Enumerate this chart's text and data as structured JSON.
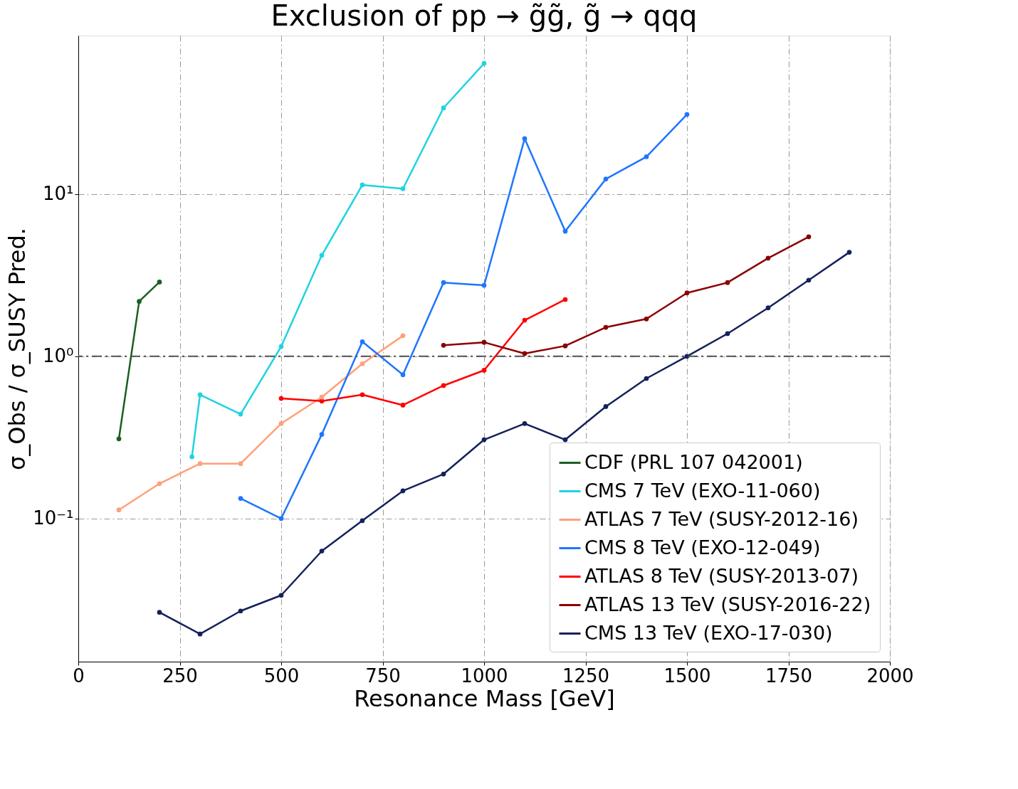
{
  "chart_data": {
    "type": "line",
    "title": "Exclusion of pp → g̃g̃, g̃ → qqq",
    "xlabel": "Resonance Mass [GeV]",
    "ylabel": "σ_Obs / σ_SUSY Pred.",
    "log": "y",
    "grid": true,
    "legend": "bottom right",
    "marker": "circle",
    "xlim": [
      0,
      2000
    ],
    "xticks": [
      0,
      250,
      500,
      750,
      1000,
      1250,
      1500,
      1750,
      2000
    ],
    "ylim": [
      0.0131,
      95
    ],
    "yticks": [
      {
        "value": 0.1,
        "label": "10⁻¹"
      },
      {
        "value": 1,
        "label": "10⁰"
      },
      {
        "value": 10,
        "label": "10¹"
      }
    ],
    "ref_lines": [
      {
        "axis": "y",
        "value": 1,
        "color": "#555555"
      }
    ],
    "series": [
      {
        "name": "CDF (PRL 107 042001)",
        "color": "#1b5e20",
        "x": [
          100,
          150,
          200
        ],
        "values": [
          0.31,
          2.18,
          2.87
        ]
      },
      {
        "name": "CMS 7 TeV (EXO-11-060)",
        "color": "#1fd3e0",
        "x": [
          280,
          300,
          400,
          500,
          600,
          700,
          800,
          900,
          1000
        ],
        "values": [
          0.24,
          0.58,
          0.44,
          1.15,
          4.2,
          11.4,
          10.8,
          34,
          64
        ]
      },
      {
        "name": "ATLAS 7 TeV (SUSY-2012-16)",
        "color": "#ffa07a",
        "x": [
          100,
          200,
          300,
          400,
          500,
          600,
          700,
          800
        ],
        "values": [
          0.113,
          0.164,
          0.218,
          0.218,
          0.385,
          0.56,
          0.9,
          1.34
        ]
      },
      {
        "name": "CMS 8 TeV (EXO-12-049)",
        "color": "#1f75fe",
        "x": [
          400,
          500,
          600,
          700,
          800,
          900,
          1000,
          1100,
          1200,
          1300,
          1400,
          1500
        ],
        "values": [
          0.133,
          0.1,
          0.33,
          1.23,
          0.77,
          2.85,
          2.74,
          22,
          5.9,
          12.4,
          17,
          31
        ]
      },
      {
        "name": "ATLAS 8 TeV (SUSY-2013-07)",
        "color": "#ff0000",
        "x": [
          500,
          600,
          700,
          800,
          900,
          1000,
          1100,
          1200
        ],
        "values": [
          0.55,
          0.53,
          0.58,
          0.5,
          0.66,
          0.82,
          1.67,
          2.24
        ]
      },
      {
        "name": "ATLAS 13 TeV (SUSY-2016-22)",
        "color": "#8b0000",
        "x": [
          900,
          1000,
          1100,
          1200,
          1300,
          1400,
          1500,
          1600,
          1700,
          1800
        ],
        "values": [
          1.17,
          1.22,
          1.04,
          1.16,
          1.51,
          1.7,
          2.46,
          2.85,
          4.03,
          5.46
        ]
      },
      {
        "name": "CMS 13 TeV (EXO-17-030)",
        "color": "#15215a",
        "x": [
          200,
          300,
          400,
          500,
          600,
          700,
          800,
          900,
          1000,
          1100,
          1200,
          1300,
          1400,
          1500,
          1600,
          1700,
          1800,
          1900
        ],
        "values": [
          0.0264,
          0.0194,
          0.0269,
          0.0336,
          0.063,
          0.097,
          0.148,
          0.188,
          0.306,
          0.385,
          0.306,
          0.49,
          0.73,
          1.0,
          1.38,
          1.99,
          2.95,
          4.38
        ]
      }
    ]
  }
}
